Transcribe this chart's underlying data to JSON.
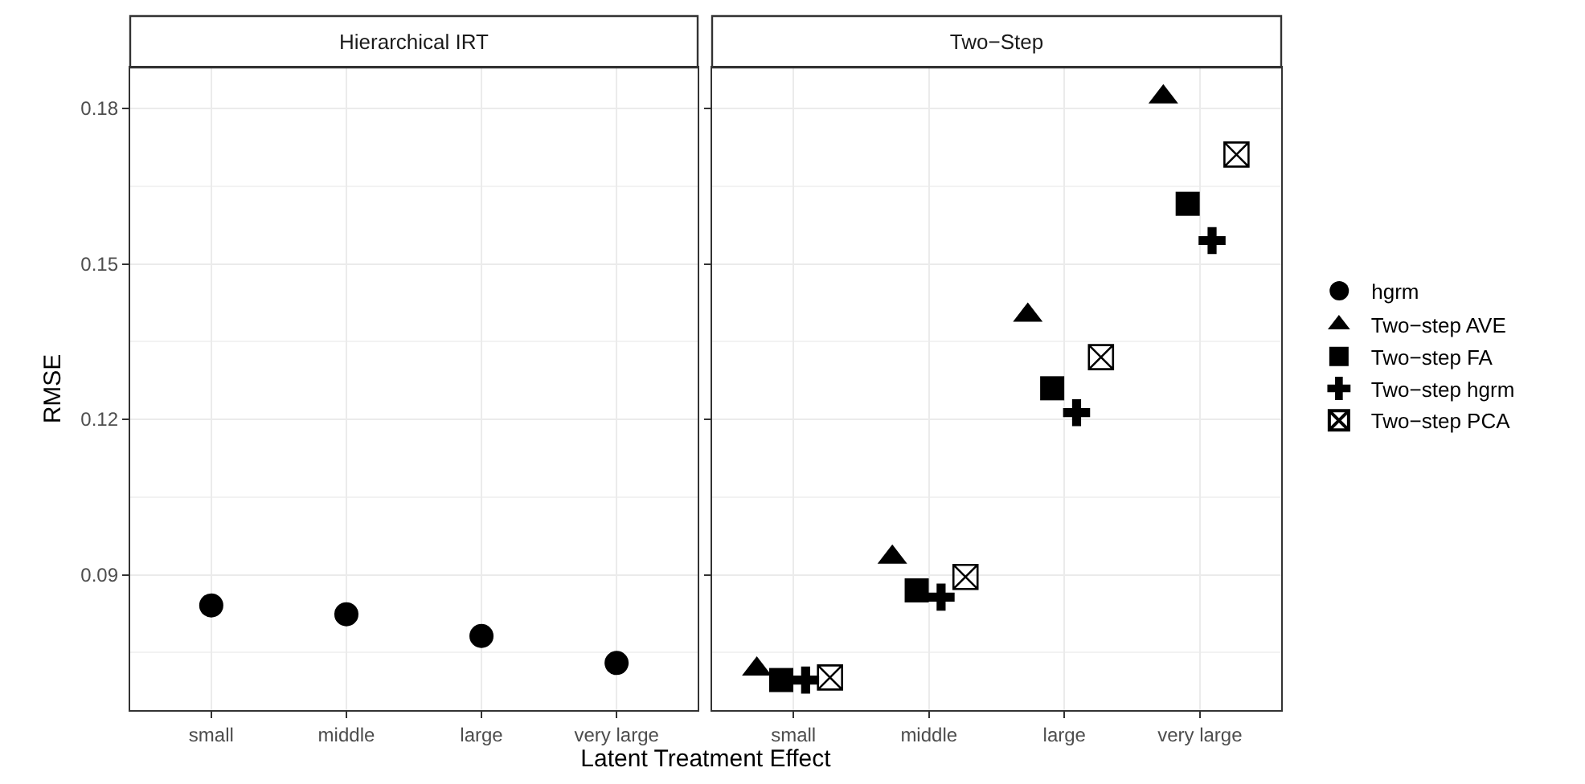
{
  "chart_data": [
    {
      "type": "scatter",
      "title": "Hierarchical IRT",
      "xlabel": "Latent Treatment Effect",
      "ylabel": "RMSE",
      "categories": [
        "small",
        "middle",
        "large",
        "very large"
      ],
      "ylim": [
        0.0639,
        0.1879
      ],
      "yticks": [
        0.09,
        0.12,
        0.15,
        0.18
      ],
      "grid": true,
      "legend": "right",
      "series": [
        {
          "name": "hgrm",
          "color": "#000000",
          "marker": "circle",
          "values": [
            0.0841,
            0.0824,
            0.0782,
            0.073
          ]
        }
      ]
    },
    {
      "type": "scatter",
      "title": "Two−Step",
      "categories": [
        "small",
        "middle",
        "large",
        "very large"
      ],
      "ylim": [
        0.0639,
        0.1879
      ],
      "yticks": [
        0.09,
        0.12,
        0.15,
        0.18
      ],
      "grid": true,
      "legend": "right",
      "tick_labels": "x",
      "series": [
        {
          "name": "Two−step AVE",
          "color": "#000000",
          "marker": "triangle",
          "values": [
            0.0718,
            0.0934,
            0.1401,
            0.1822
          ]
        },
        {
          "name": "Two−step FA",
          "color": "#000000",
          "marker": "square",
          "values": [
            0.0697,
            0.087,
            0.126,
            0.1616
          ]
        },
        {
          "name": "Two−step hgrm",
          "color": "#000000",
          "marker": "cross",
          "values": [
            0.0697,
            0.0857,
            0.1213,
            0.1545
          ]
        },
        {
          "name": "Two−step PCA",
          "color": "#000000",
          "values": [
            0.0702,
            0.0896,
            0.132,
            0.1711
          ]
        }
      ]
    }
  ]
}
